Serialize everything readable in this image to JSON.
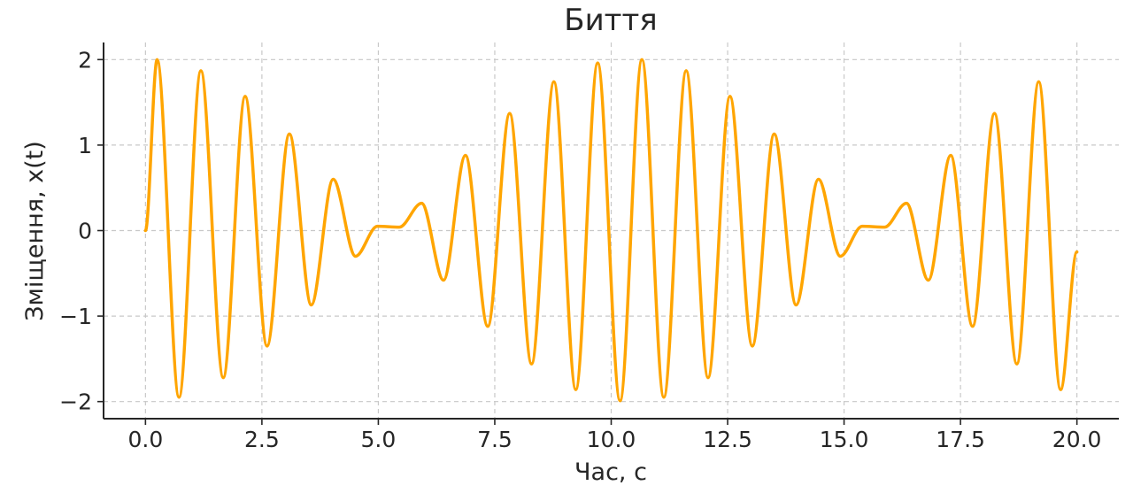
{
  "chart_data": {
    "type": "line",
    "title": "Биття",
    "xlabel": "Час, с",
    "ylabel": "Зміщення, x(t)",
    "xlim": [
      -0.9,
      20.9
    ],
    "ylim": [
      -2.2,
      2.2
    ],
    "x_ticks": [
      0.0,
      2.5,
      5.0,
      7.5,
      10.0,
      12.5,
      15.0,
      17.5,
      20.0
    ],
    "x_tick_labels": [
      "0.0",
      "2.5",
      "5.0",
      "7.5",
      "10.0",
      "12.5",
      "15.0",
      "17.5",
      "20.0"
    ],
    "y_ticks": [
      2,
      1,
      0,
      -1,
      -2
    ],
    "y_tick_labels": [
      "2",
      "1",
      "0",
      "−1",
      "−2"
    ],
    "grid": true,
    "line_color": "#FFA500",
    "series": [
      {
        "x": [
          0,
          0.25,
          0.72,
          1.19,
          1.67,
          2.14,
          2.61,
          3.09,
          3.56,
          4.03,
          4.51,
          4.98,
          5.45,
          5.93,
          6.4,
          6.87,
          7.35,
          7.82,
          8.29,
          8.77,
          9.24,
          9.71,
          10.19,
          10.66,
          11.13,
          11.61,
          12.08,
          12.55,
          13.03,
          13.5,
          13.97,
          14.45,
          14.92,
          15.39,
          15.87,
          16.34,
          16.81,
          17.29,
          17.76,
          18.23,
          18.71,
          19.18,
          19.65,
          20.0
        ],
        "y": [
          0,
          2.0,
          -1.95,
          1.87,
          -1.72,
          1.57,
          -1.35,
          1.13,
          -0.87,
          0.6,
          -0.3,
          0.05,
          0.04,
          0.32,
          -0.58,
          0.88,
          -1.12,
          1.37,
          -1.56,
          1.74,
          -1.86,
          1.96,
          -1.99,
          2.0,
          -1.95,
          1.87,
          -1.72,
          1.57,
          -1.35,
          1.13,
          -0.87,
          0.6,
          -0.3,
          0.05,
          0.04,
          0.32,
          -0.58,
          0.88,
          -1.12,
          1.37,
          -1.56,
          1.74,
          -1.86,
          -0.25
        ]
      }
    ]
  }
}
